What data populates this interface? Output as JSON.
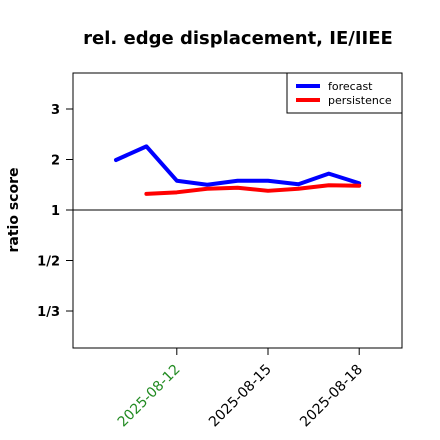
{
  "chart_data": {
    "type": "line",
    "title": "rel. edge displacement, IE/IIEE",
    "ylabel": "ratio score",
    "xlabel": "",
    "x": [
      "2025-08-10",
      "2025-08-11",
      "2025-08-12",
      "2025-08-13",
      "2025-08-14",
      "2025-08-15",
      "2025-08-16",
      "2025-08-17",
      "2025-08-18",
      "2025-08-19"
    ],
    "series": [
      {
        "name": "forecast",
        "color": "#0000ff",
        "values": [
          1.99,
          2.26,
          1.58,
          1.5,
          1.58,
          1.58,
          1.51,
          1.72,
          1.53,
          null
        ]
      },
      {
        "name": "persistence",
        "color": "#ff0000",
        "values": [
          null,
          1.32,
          1.35,
          1.42,
          1.44,
          1.38,
          1.42,
          1.49,
          1.48,
          null
        ]
      }
    ],
    "y_scale": "reciprocal-symmetric",
    "yticks": [
      {
        "value": 3,
        "label": "3"
      },
      {
        "value": 2,
        "label": "2"
      },
      {
        "value": 1,
        "label": "1"
      },
      {
        "value": 0.5,
        "label": "1/2"
      },
      {
        "value": 0.3333,
        "label": "1/3"
      }
    ],
    "xticks": [
      {
        "value": "2025-08-12",
        "label": "2025-08-12",
        "color": "#228b22"
      },
      {
        "value": "2025-08-15",
        "label": "2025-08-15",
        "color": "#000000"
      },
      {
        "value": "2025-08-18",
        "label": "2025-08-18",
        "color": "#000000"
      }
    ],
    "reference_line": 1,
    "grid": false,
    "legend_position": "top-right"
  }
}
